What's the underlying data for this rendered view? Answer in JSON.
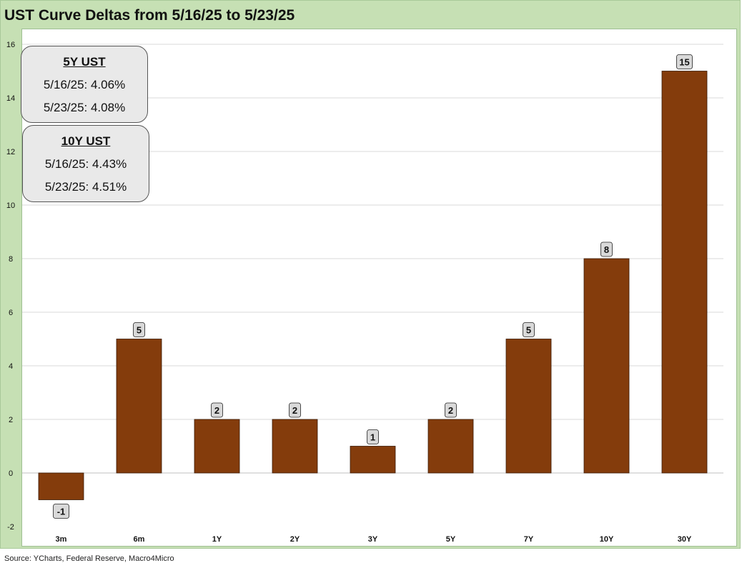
{
  "title": "UST Curve Deltas from 5/16/25 to 5/23/25",
  "source": "Source: YCharts, Federal Reserve, Macro4Micro",
  "info_boxes": [
    {
      "header": "5Y UST",
      "rows": [
        "5/16/25:  4.06%",
        "5/23/25:  4.08%"
      ]
    },
    {
      "header": "10Y UST",
      "rows": [
        "5/16/25:  4.43%",
        "5/23/25:  4.51%"
      ]
    }
  ],
  "colors": {
    "bar": "#843c0c",
    "background": "#c6e0b4",
    "label_box": "#d9d9d9"
  },
  "chart_data": {
    "type": "bar",
    "categories": [
      "3m",
      "6m",
      "1Y",
      "2Y",
      "3Y",
      "5Y",
      "7Y",
      "10Y",
      "30Y"
    ],
    "values": [
      -1,
      5,
      2,
      2,
      1,
      2,
      5,
      8,
      15
    ],
    "ylim": [
      -2,
      16
    ],
    "yticks": [
      -2,
      0,
      2,
      4,
      6,
      8,
      10,
      12,
      14,
      16
    ],
    "grid": true,
    "xlabel": "",
    "ylabel": ""
  }
}
